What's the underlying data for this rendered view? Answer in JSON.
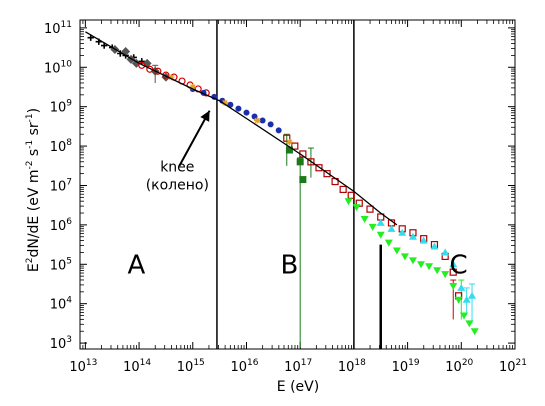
{
  "chart_data": {
    "type": "scatter",
    "xlabel_main": "E",
    "xlabel_unit": "(eV)",
    "ylabel_prefix": "E",
    "ylabel_sup": "2",
    "ylabel_rest": "dN/dE (eV m",
    "ylabel_sup2": "-2",
    "ylabel_rest2": " s",
    "ylabel_sup3": "-1",
    "ylabel_rest3": " sr",
    "ylabel_sup4": "-1",
    "ylabel_end": ")",
    "x_scale": "log",
    "y_scale": "log",
    "xlim_exp": [
      12.9,
      21
    ],
    "ylim_exp": [
      2.85,
      11.2
    ],
    "x_ticks": [
      13,
      14,
      15,
      16,
      17,
      18,
      19,
      20,
      21
    ],
    "y_ticks": [
      3,
      4,
      5,
      6,
      7,
      8,
      9,
      10,
      11
    ],
    "tick_base": "10",
    "region_labels": [
      {
        "text": "A",
        "x_exp": 13.95,
        "y_exp": 5.0
      },
      {
        "text": "B",
        "x_exp": 16.8,
        "y_exp": 5.0
      },
      {
        "text": "C",
        "x_exp": 19.95,
        "y_exp": 5.0
      }
    ],
    "vertical_lines_x_exp": [
      15.45,
      18.0
    ],
    "ankle_line": {
      "x_exp": 18.5,
      "y_exp_top": 5.5
    },
    "annotation": {
      "line1": "knee",
      "line2": "(колено)",
      "text_x_exp": 15.55,
      "text_y_exp": 7.3,
      "arrow_to_x_exp": 15.35,
      "arrow_to_y_exp": 9.0,
      "arrow_from_x_exp": 14.6,
      "arrow_from_y_exp": 7.9
    },
    "fit_line": {
      "points": [
        [
          13.0,
          10.9
        ],
        [
          14.0,
          10.1
        ],
        [
          15.0,
          9.45
        ],
        [
          15.5,
          9.15
        ],
        [
          16.0,
          8.7
        ],
        [
          17.0,
          7.8
        ],
        [
          18.0,
          6.85
        ],
        [
          18.5,
          6.3
        ],
        [
          18.8,
          6.0
        ]
      ]
    },
    "series": [
      {
        "marker": "plus",
        "color": "#000000",
        "points": [
          [
            13.1,
            10.75
          ],
          [
            13.25,
            10.65
          ],
          [
            13.35,
            10.55
          ],
          [
            13.5,
            10.5
          ],
          [
            13.65,
            10.35
          ],
          [
            13.75,
            10.3
          ],
          [
            13.9,
            10.25
          ],
          [
            14.05,
            10.15
          ]
        ]
      },
      {
        "marker": "diamond",
        "color": "#555555",
        "points": [
          [
            13.55,
            10.45
          ],
          [
            13.75,
            10.4
          ],
          [
            13.85,
            10.2
          ],
          [
            13.95,
            10.1
          ],
          [
            14.15,
            10.1
          ],
          [
            14.3,
            9.9
          ],
          [
            14.5,
            9.75
          ]
        ]
      },
      {
        "marker": "open-circle",
        "color": "#d00000",
        "points": [
          [
            14.05,
            10.05
          ],
          [
            14.2,
            9.95
          ],
          [
            14.35,
            9.9
          ],
          [
            14.5,
            9.8
          ],
          [
            14.65,
            9.75
          ],
          [
            14.8,
            9.65
          ],
          [
            14.95,
            9.55
          ],
          [
            15.1,
            9.45
          ],
          [
            15.25,
            9.35
          ]
        ]
      },
      {
        "marker": "filled-circle",
        "color": "#1a2fb0",
        "points": [
          [
            15.0,
            9.45
          ],
          [
            15.2,
            9.35
          ],
          [
            15.4,
            9.25
          ],
          [
            15.55,
            9.15
          ],
          [
            15.7,
            9.05
          ],
          [
            15.85,
            8.95
          ],
          [
            16.0,
            8.85
          ],
          [
            16.15,
            8.75
          ],
          [
            16.3,
            8.65
          ],
          [
            16.45,
            8.55
          ],
          [
            16.6,
            8.4
          ]
        ]
      },
      {
        "marker": "open-square",
        "color": "#b00000",
        "points": [
          [
            16.75,
            8.2
          ],
          [
            16.9,
            8.0
          ],
          [
            17.05,
            7.8
          ],
          [
            17.2,
            7.6
          ],
          [
            17.35,
            7.45
          ],
          [
            17.5,
            7.3
          ],
          [
            17.65,
            7.1
          ],
          [
            17.8,
            6.9
          ],
          [
            17.95,
            6.75
          ],
          [
            18.1,
            6.55
          ],
          [
            18.3,
            6.4
          ],
          [
            18.5,
            6.2
          ],
          [
            18.7,
            6.05
          ],
          [
            18.9,
            5.9
          ],
          [
            19.1,
            5.8
          ],
          [
            19.3,
            5.65
          ],
          [
            19.5,
            5.5
          ],
          [
            19.7,
            5.2
          ],
          [
            19.85,
            4.8
          ],
          [
            19.95,
            4.2
          ]
        ]
      },
      {
        "marker": "filled-square",
        "color": "#1a7a1a",
        "points": [
          [
            16.8,
            7.9
          ],
          [
            17.0,
            7.6
          ],
          [
            17.05,
            7.15
          ]
        ]
      },
      {
        "marker": "triangle-down",
        "color": "#22ee22",
        "points": [
          [
            17.9,
            6.6
          ],
          [
            18.05,
            6.45
          ],
          [
            18.2,
            6.15
          ],
          [
            18.35,
            5.95
          ],
          [
            18.5,
            5.75
          ],
          [
            18.65,
            5.55
          ],
          [
            18.8,
            5.35
          ],
          [
            18.95,
            5.2
          ],
          [
            19.1,
            5.1
          ],
          [
            19.25,
            5.0
          ],
          [
            19.4,
            4.95
          ],
          [
            19.55,
            4.85
          ],
          [
            19.7,
            4.75
          ],
          [
            19.85,
            4.45
          ],
          [
            19.95,
            4.1
          ],
          [
            20.05,
            3.7
          ],
          [
            20.15,
            3.5
          ],
          [
            20.25,
            3.3
          ]
        ]
      },
      {
        "marker": "triangle-up",
        "color": "#33ddee",
        "points": [
          [
            18.5,
            6.05
          ],
          [
            18.7,
            5.9
          ],
          [
            18.9,
            5.8
          ],
          [
            19.1,
            5.7
          ],
          [
            19.3,
            5.6
          ],
          [
            19.5,
            5.45
          ],
          [
            19.7,
            5.3
          ],
          [
            19.85,
            5.0
          ],
          [
            20.0,
            4.4
          ],
          [
            20.1,
            4.1
          ],
          [
            20.2,
            4.2
          ]
        ]
      },
      {
        "marker": "star",
        "color": "#e8a020",
        "points": [
          [
            14.6,
            9.75
          ],
          [
            15.0,
            9.5
          ],
          [
            15.6,
            9.1
          ],
          [
            16.2,
            8.65
          ],
          [
            16.8,
            8.1
          ]
        ]
      }
    ],
    "error_bars": [
      {
        "x_exp": 14.3,
        "y_lo": 9.6,
        "y_hi": 10.05,
        "color": "#555555"
      },
      {
        "x_exp": 17.0,
        "y_lo": 2.9,
        "y_hi": 7.7,
        "color": "#1a7a1a"
      },
      {
        "x_exp": 16.75,
        "y_lo": 7.5,
        "y_hi": 8.3,
        "color": "#1a7a1a"
      },
      {
        "x_exp": 17.2,
        "y_lo": 7.2,
        "y_hi": 7.95,
        "color": "#1a7a1a"
      },
      {
        "x_exp": 19.85,
        "y_lo": 3.6,
        "y_hi": 4.6,
        "color": "#d00000"
      },
      {
        "x_exp": 20.0,
        "y_lo": 3.6,
        "y_hi": 4.6,
        "color": "#22ee22"
      },
      {
        "x_exp": 20.1,
        "y_lo": 3.7,
        "y_hi": 4.4,
        "color": "#33ddee"
      },
      {
        "x_exp": 20.2,
        "y_lo": 3.5,
        "y_hi": 4.5,
        "color": "#33ddee"
      }
    ]
  }
}
